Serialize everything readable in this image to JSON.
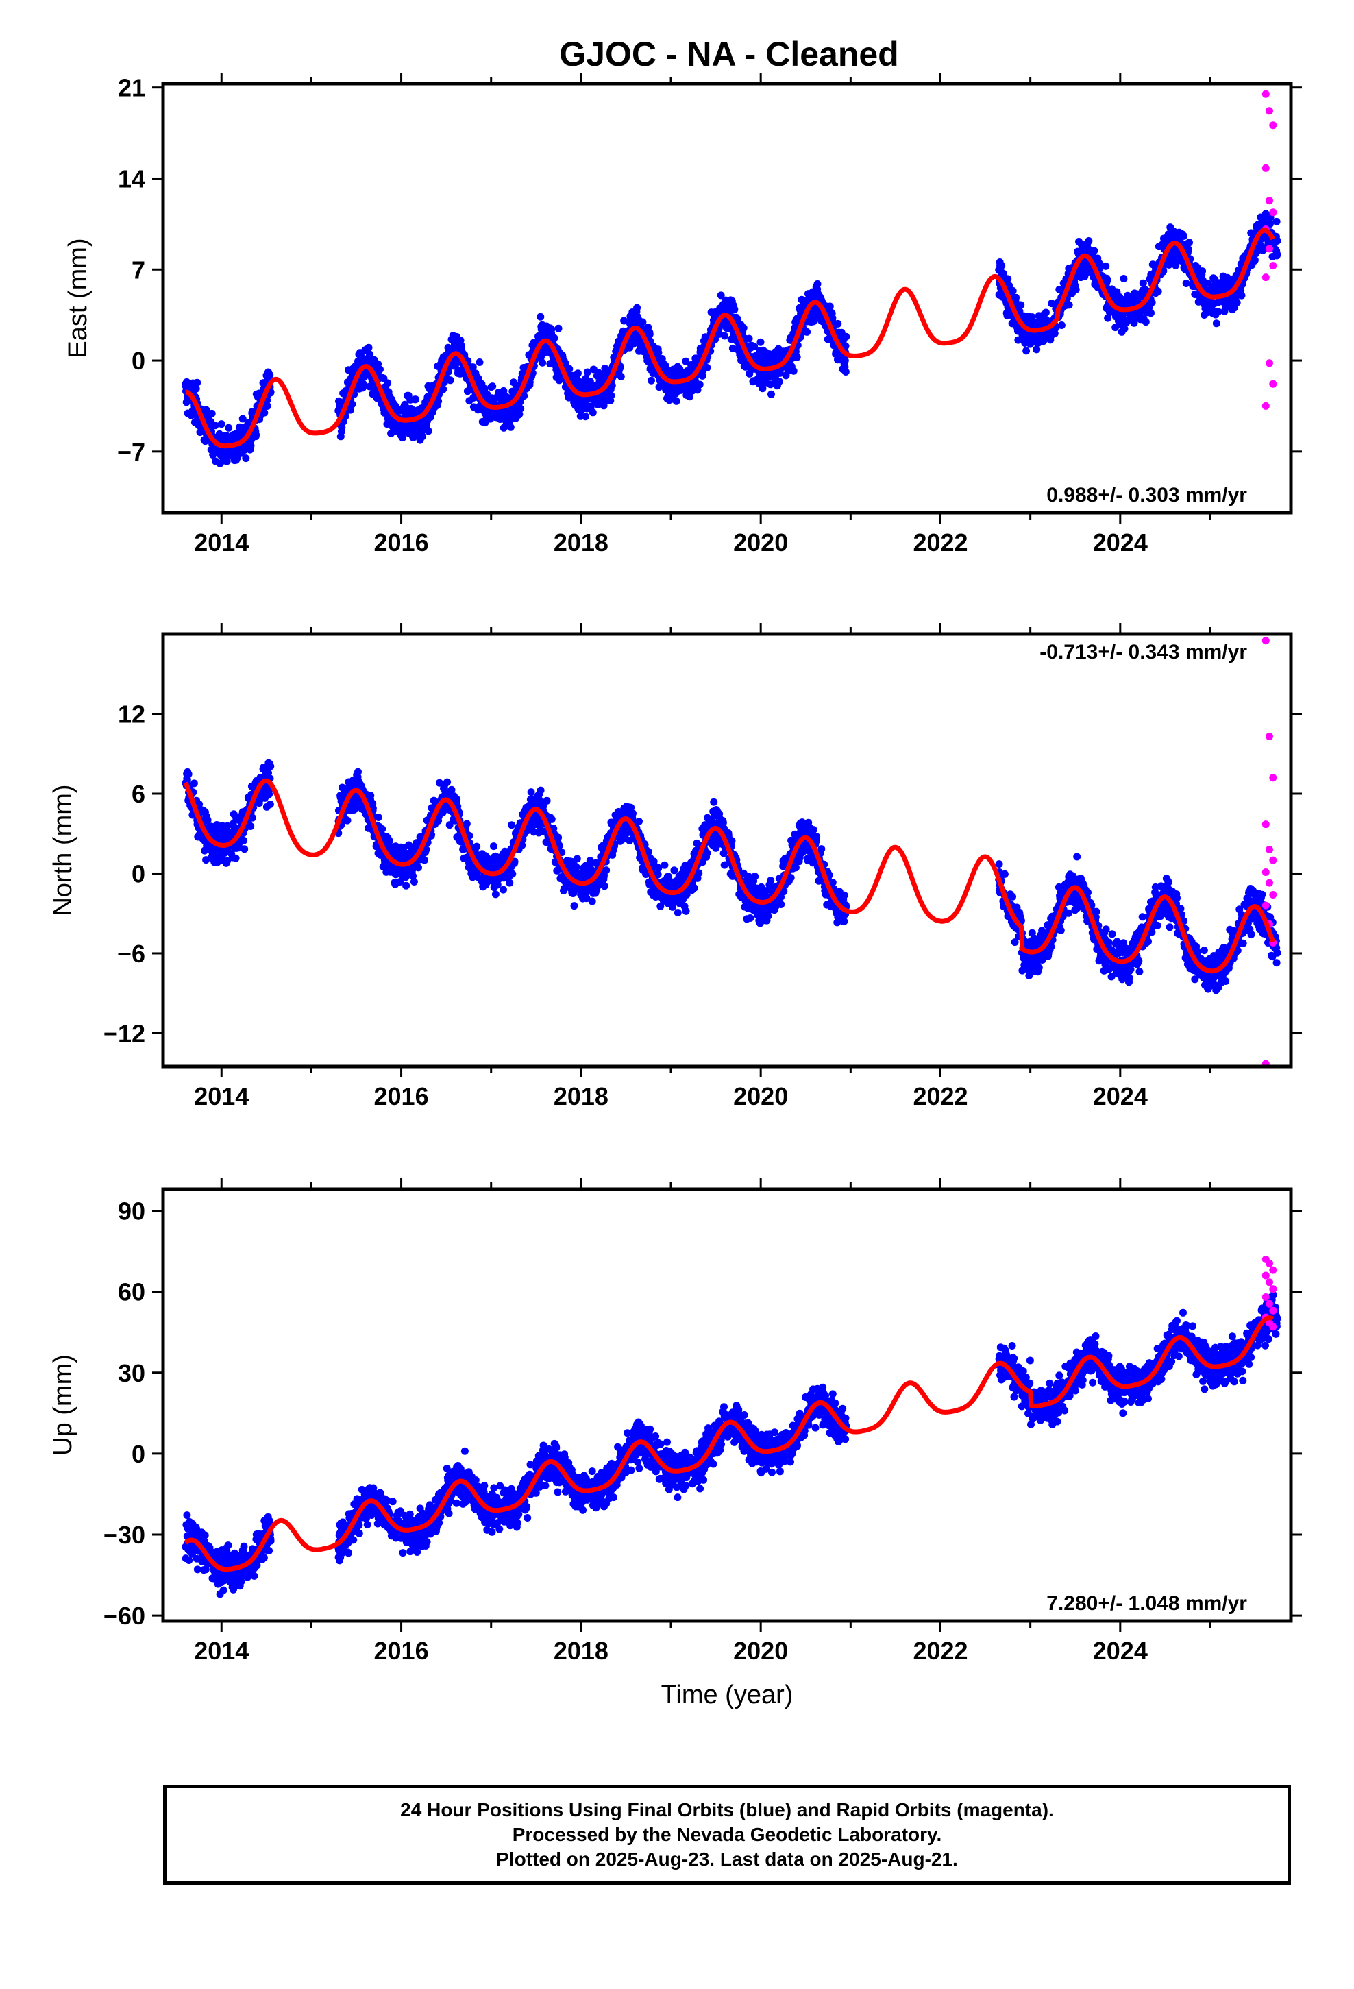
{
  "title": "GJOC  - NA - Cleaned",
  "footer": {
    "line1": "24 Hour Positions Using Final Orbits (blue) and Rapid Orbits (magenta).",
    "line2": "Processed by the Nevada Geodetic Laboratory.",
    "line3": "Plotted on 2025-Aug-23. Last data on 2025-Aug-21."
  },
  "colors": {
    "final_orbits": "#0000ff",
    "rapid_orbits": "#ff00ff",
    "model": "#ff0000",
    "frame": "#000000"
  },
  "chart_data": [
    {
      "type": "scatter",
      "title": "GJOC  - NA - Cleaned",
      "xlabel": "",
      "ylabel": "East (mm)",
      "xlim": [
        2013.35,
        2025.9
      ],
      "ylim": [
        -11.7,
        21.3
      ],
      "xticks": [
        2014,
        2016,
        2018,
        2020,
        2022,
        2024
      ],
      "yticks": [
        -7,
        0,
        7,
        14,
        21
      ],
      "ytick_labels": [
        "−7",
        "0",
        "7",
        "14",
        "21"
      ],
      "rate_label": "0.988+/- 0.303 mm/yr",
      "rate_label_position": "bottom-right",
      "grid": false,
      "legend": "none",
      "series": [
        {
          "name": "Final Orbits",
          "color": "#0000ff",
          "data_spans": [
            [
              2013.6,
              2014.55
            ],
            [
              2015.3,
              2020.95
            ],
            [
              2022.65,
              2025.75
            ]
          ]
        },
        {
          "name": "Rapid Orbits",
          "color": "#ff00ff",
          "x_range": [
            2025.62,
            2025.7
          ],
          "values": [
            20.5,
            19.2,
            18.1,
            14.8,
            12.3,
            11.4,
            10.1,
            8.6,
            7.3,
            6.4,
            -0.2,
            -1.8,
            -3.5
          ]
        },
        {
          "name": "Model",
          "color": "#ff0000",
          "model": {
            "t0": 2019.5,
            "intercept": 0.6,
            "rate": 0.988,
            "annual_amp": 2.3,
            "annual_peak": 0.6,
            "semiannual_amp": 0.5,
            "start": 2013.6,
            "end": 2025.7,
            "offset": {
              "at": 2023.3,
              "value": 0.6
            }
          }
        }
      ]
    },
    {
      "type": "scatter",
      "xlabel": "",
      "ylabel": "North (mm)",
      "xlim": [
        2013.35,
        2025.9
      ],
      "ylim": [
        -14.5,
        18.0
      ],
      "xticks": [
        2014,
        2016,
        2018,
        2020,
        2022,
        2024
      ],
      "yticks": [
        -12,
        -6,
        0,
        6,
        12
      ],
      "ytick_labels": [
        "−12",
        "−6",
        "0",
        "6",
        "12"
      ],
      "rate_label": "-0.713+/- 0.343 mm/yr",
      "rate_label_position": "top-right",
      "grid": false,
      "legend": "none",
      "series": [
        {
          "name": "Final Orbits",
          "color": "#0000ff",
          "data_spans": [
            [
              2013.6,
              2014.55
            ],
            [
              2015.3,
              2020.95
            ],
            [
              2022.65,
              2025.75
            ]
          ]
        },
        {
          "name": "Rapid Orbits",
          "color": "#ff00ff",
          "x_range": [
            2025.62,
            2025.7
          ],
          "values": [
            17.5,
            10.3,
            7.2,
            3.7,
            1.8,
            1.0,
            0.1,
            -0.7,
            -1.6,
            -2.4,
            -3.8,
            -5.2,
            -14.3
          ]
        },
        {
          "name": "Model",
          "color": "#ff0000",
          "model": {
            "t0": 2019.5,
            "intercept": 0.4,
            "rate": -0.713,
            "annual_amp": 2.6,
            "annual_peak": 0.5,
            "semiannual_amp": 0.4,
            "start": 2013.6,
            "end": 2025.7,
            "offset": {
              "at": 2022.9,
              "value": -1.6
            }
          }
        }
      ]
    },
    {
      "type": "scatter",
      "xlabel": "Time (year)",
      "ylabel": "Up (mm)",
      "xlim": [
        2013.35,
        2025.9
      ],
      "ylim": [
        -62,
        98
      ],
      "xticks": [
        2014,
        2016,
        2018,
        2020,
        2022,
        2024
      ],
      "yticks": [
        -60,
        -30,
        0,
        30,
        60,
        90
      ],
      "ytick_labels": [
        "−60",
        "−30",
        "0",
        "30",
        "60",
        "90"
      ],
      "rate_label": "7.280+/- 1.048 mm/yr",
      "rate_label_position": "bottom-right",
      "grid": false,
      "legend": "none",
      "series": [
        {
          "name": "Final Orbits",
          "color": "#0000ff",
          "data_spans": [
            [
              2013.6,
              2014.55
            ],
            [
              2015.3,
              2020.95
            ],
            [
              2022.65,
              2025.75
            ]
          ]
        },
        {
          "name": "Rapid Orbits",
          "color": "#ff00ff",
          "x_range": [
            2025.62,
            2025.7
          ],
          "values": [
            72.0,
            70.5,
            68.0,
            66.0,
            63.5,
            61.0,
            58.0,
            55.5,
            53.0,
            50.5,
            48.5,
            47.0
          ]
        },
        {
          "name": "Model",
          "color": "#ff0000",
          "model": {
            "t0": 2019.5,
            "intercept": 2.0,
            "rate": 7.28,
            "annual_amp": 7.0,
            "annual_peak": 0.65,
            "semiannual_amp": 1.5,
            "start": 2013.6,
            "end": 2025.7,
            "offset": {
              "at": 2023.0,
              "value": -5.0
            }
          }
        }
      ]
    }
  ]
}
